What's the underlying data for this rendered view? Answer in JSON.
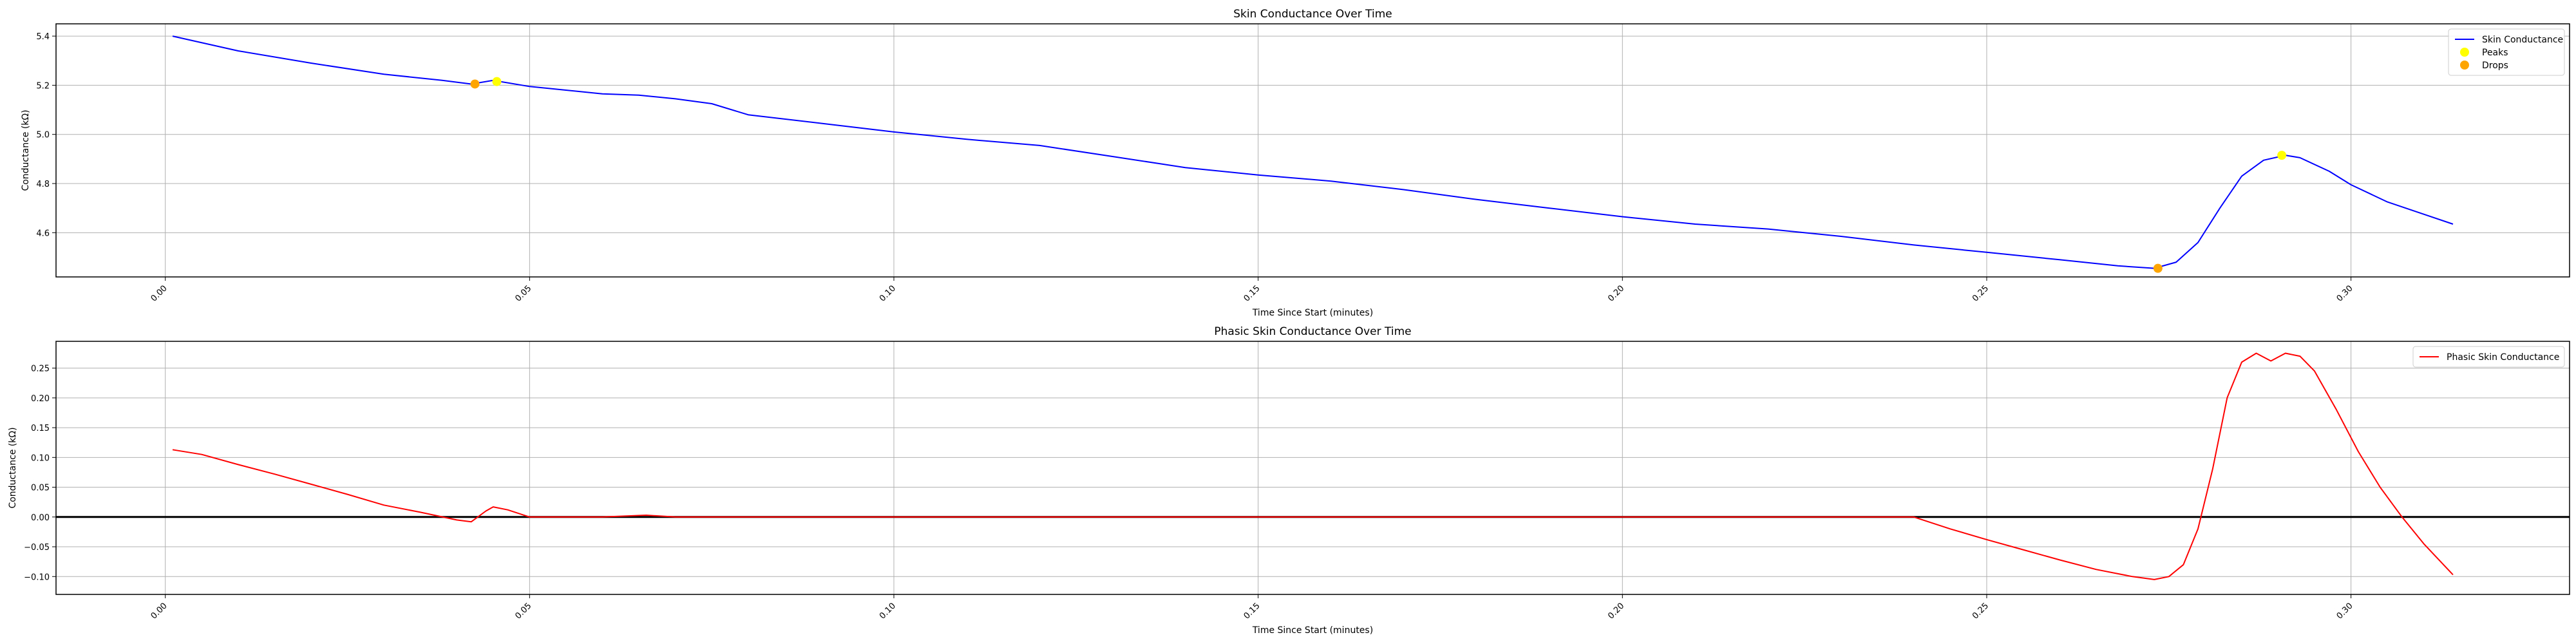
{
  "figure": {
    "background": "#ffffff"
  },
  "chart_data": [
    {
      "type": "line",
      "title": "Skin Conductance Over Time",
      "xlabel": "Time Since Start (minutes)",
      "ylabel": "Conductance (kΩ)",
      "xlim": [
        -0.015,
        0.33
      ],
      "ylim": [
        4.42,
        5.45
      ],
      "xticks": [
        0.0,
        0.05,
        0.1,
        0.15,
        0.2,
        0.25,
        0.3
      ],
      "xtick_labels": [
        "0.00",
        "0.05",
        "0.10",
        "0.15",
        "0.20",
        "0.25",
        "0.30"
      ],
      "yticks": [
        4.6,
        4.8,
        5.0,
        5.2,
        5.4
      ],
      "ytick_labels": [
        "4.6",
        "4.8",
        "5.0",
        "5.2",
        "5.4"
      ],
      "grid": true,
      "legend_position": "top-right",
      "series": [
        {
          "name": "Skin Conductance",
          "kind": "line",
          "color": "#0000ff",
          "x": [
            0.001,
            0.01,
            0.02,
            0.03,
            0.038,
            0.042,
            0.045,
            0.05,
            0.055,
            0.06,
            0.065,
            0.07,
            0.075,
            0.08,
            0.09,
            0.1,
            0.11,
            0.12,
            0.13,
            0.14,
            0.15,
            0.16,
            0.17,
            0.18,
            0.19,
            0.2,
            0.21,
            0.22,
            0.23,
            0.24,
            0.25,
            0.26,
            0.268,
            0.273,
            0.276,
            0.279,
            0.282,
            0.285,
            0.288,
            0.291,
            0.293,
            0.297,
            0.3,
            0.305,
            0.31,
            0.314
          ],
          "y": [
            5.4,
            5.34,
            5.29,
            5.245,
            5.22,
            5.205,
            5.22,
            5.195,
            5.18,
            5.165,
            5.16,
            5.145,
            5.125,
            5.08,
            5.045,
            5.01,
            4.98,
            4.955,
            4.91,
            4.865,
            4.835,
            4.81,
            4.775,
            4.735,
            4.7,
            4.665,
            4.635,
            4.615,
            4.585,
            4.55,
            4.52,
            4.49,
            4.465,
            4.455,
            4.48,
            4.56,
            4.7,
            4.83,
            4.895,
            4.915,
            4.905,
            4.85,
            4.795,
            4.725,
            4.675,
            4.635
          ]
        },
        {
          "name": "Peaks",
          "kind": "points",
          "color": "#ffff00",
          "x": [
            0.0455,
            0.2905
          ],
          "y": [
            5.215,
            4.915
          ]
        },
        {
          "name": "Drops",
          "kind": "points",
          "color": "#ffa500",
          "x": [
            0.0425,
            0.2735
          ],
          "y": [
            5.205,
            4.455
          ]
        }
      ]
    },
    {
      "type": "line",
      "title": "Phasic Skin Conductance Over Time",
      "xlabel": "Time Since Start (minutes)",
      "ylabel": "Conductance (kΩ)",
      "xlim": [
        -0.015,
        0.33
      ],
      "ylim": [
        -0.13,
        0.295
      ],
      "xticks": [
        0.0,
        0.05,
        0.1,
        0.15,
        0.2,
        0.25,
        0.3
      ],
      "xtick_labels": [
        "0.00",
        "0.05",
        "0.10",
        "0.15",
        "0.20",
        "0.25",
        "0.30"
      ],
      "yticks": [
        -0.1,
        -0.05,
        0.0,
        0.05,
        0.1,
        0.15,
        0.2,
        0.25
      ],
      "ytick_labels": [
        "−0.10",
        "−0.05",
        "0.00",
        "0.05",
        "0.10",
        "0.15",
        "0.20",
        "0.25"
      ],
      "grid": true,
      "legend_position": "top-right",
      "hline": 0,
      "series": [
        {
          "name": "Phasic Skin Conductance",
          "kind": "line",
          "color": "#ff0000",
          "x": [
            0.001,
            0.005,
            0.01,
            0.015,
            0.02,
            0.025,
            0.03,
            0.035,
            0.04,
            0.042,
            0.044,
            0.045,
            0.047,
            0.05,
            0.06,
            0.066,
            0.07,
            0.1,
            0.15,
            0.2,
            0.24,
            0.245,
            0.25,
            0.255,
            0.26,
            0.265,
            0.27,
            0.273,
            0.275,
            0.277,
            0.279,
            0.281,
            0.283,
            0.285,
            0.287,
            0.289,
            0.291,
            0.293,
            0.295,
            0.298,
            0.301,
            0.304,
            0.307,
            0.31,
            0.314
          ],
          "y": [
            0.113,
            0.105,
            0.088,
            0.072,
            0.055,
            0.038,
            0.02,
            0.008,
            -0.005,
            -0.008,
            0.01,
            0.017,
            0.012,
            0.0,
            0.0,
            0.003,
            0.0,
            0.0,
            0.0,
            0.0,
            0.0,
            -0.02,
            -0.038,
            -0.055,
            -0.072,
            -0.088,
            -0.1,
            -0.105,
            -0.1,
            -0.08,
            -0.02,
            0.08,
            0.2,
            0.26,
            0.275,
            0.262,
            0.275,
            0.27,
            0.245,
            0.18,
            0.11,
            0.05,
            0.0,
            -0.045,
            -0.097
          ]
        }
      ]
    }
  ]
}
